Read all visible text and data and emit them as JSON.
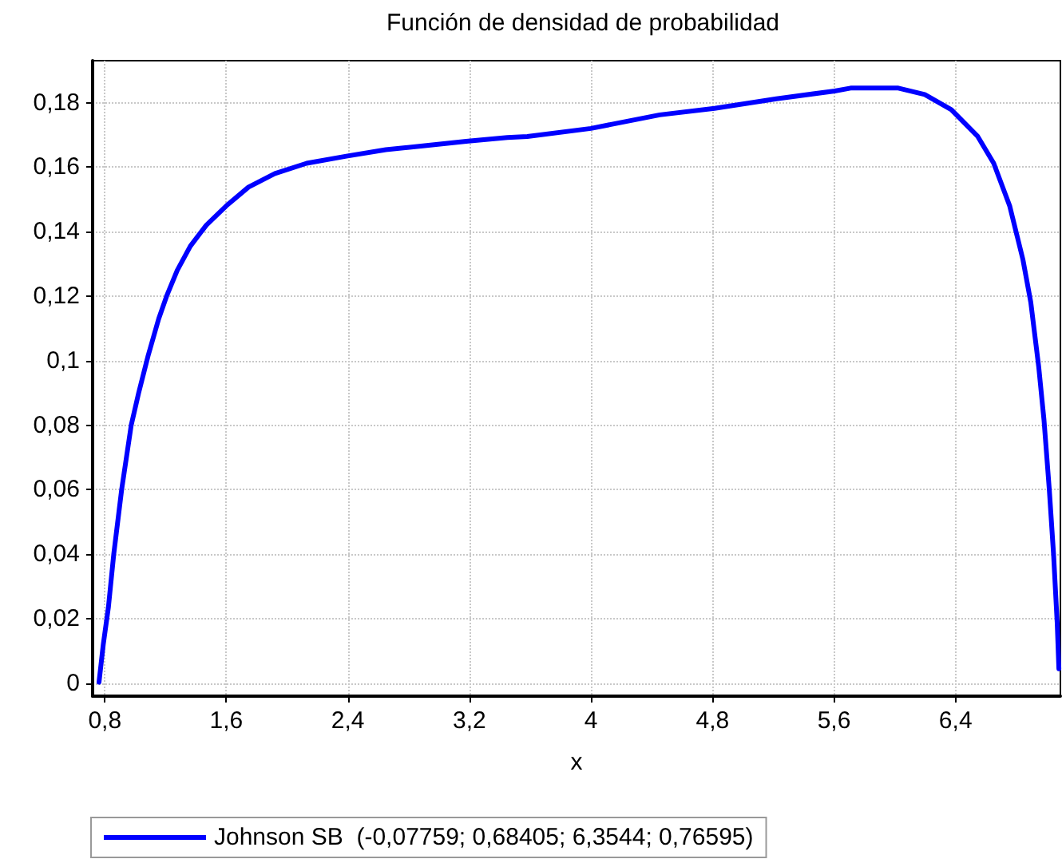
{
  "chart_data": {
    "type": "line",
    "title": "Función de densidad de probabilidad",
    "xlabel": "x",
    "x": [
      0.762,
      0.79,
      0.824,
      0.859,
      0.911,
      0.974,
      1.023,
      1.085,
      1.155,
      1.207,
      1.277,
      1.363,
      1.468,
      1.6,
      1.746,
      1.92,
      2.129,
      2.39,
      2.65,
      2.894,
      3.179,
      3.45,
      3.581,
      4.0,
      4.453,
      4.813,
      5.221,
      5.605,
      5.709,
      6.023,
      6.197,
      6.372,
      6.546,
      6.651,
      6.756,
      6.843,
      6.895,
      6.947,
      6.982,
      7.017,
      7.045,
      7.069,
      7.08
    ],
    "series": [
      {
        "name": "Johnson SB  (-0,07759; 0,68405; 6,3544; 0,76595)",
        "color": "#0000ff",
        "values": [
          0.0003,
          0.012,
          0.0236,
          0.04,
          0.06,
          0.08,
          0.09,
          0.1015,
          0.113,
          0.12,
          0.128,
          0.1355,
          0.142,
          0.148,
          0.1538,
          0.158,
          0.1612,
          0.1634,
          0.1654,
          0.1666,
          0.168,
          0.1692,
          0.1695,
          0.172,
          0.1762,
          0.1782,
          0.1812,
          0.1836,
          0.1845,
          0.1845,
          0.1825,
          0.1778,
          0.1695,
          0.1612,
          0.148,
          0.1314,
          0.1181,
          0.0982,
          0.0816,
          0.06,
          0.04,
          0.0186,
          0.0045
        ]
      }
    ],
    "xlim": [
      0.72,
      7.09
    ],
    "ylim": [
      -0.004,
      0.193
    ],
    "xticks": [
      {
        "value": 0.8,
        "label": "0,8"
      },
      {
        "value": 1.6,
        "label": "1,6"
      },
      {
        "value": 2.4,
        "label": "2,4"
      },
      {
        "value": 3.2,
        "label": "3,2"
      },
      {
        "value": 4,
        "label": "4"
      },
      {
        "value": 4.8,
        "label": "4,8"
      },
      {
        "value": 5.6,
        "label": "5,6"
      },
      {
        "value": 6.4,
        "label": "6,4"
      }
    ],
    "yticks": [
      0,
      {
        "value": 0.02,
        "label": "0,02"
      },
      {
        "value": 0.04,
        "label": "0,04"
      },
      {
        "value": 0.06,
        "label": "0,06"
      },
      {
        "value": 0.08,
        "label": "0,08"
      },
      {
        "value": 0.1,
        "label": "0,1"
      },
      {
        "value": 0.12,
        "label": "0,12"
      },
      {
        "value": 0.14,
        "label": "0,14"
      },
      {
        "value": 0.16,
        "label": "0,16"
      },
      {
        "value": 0.18,
        "label": "0,18"
      }
    ],
    "grid": true,
    "legend": "bottom",
    "marker": "none",
    "line_style": "solid"
  }
}
